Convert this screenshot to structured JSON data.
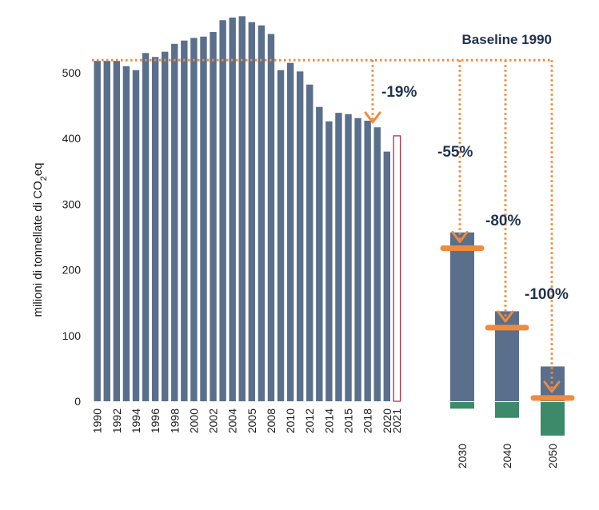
{
  "chart_data": {
    "type": "bar",
    "ylabel": "milioni di tonnellate di CO",
    "ylabel_sub": "2",
    "ylabel_suffix": "eq",
    "ylim": [
      0,
      550
    ],
    "yticks": [
      "0",
      "100",
      "200",
      "300",
      "400",
      "500"
    ],
    "yticks_values": [
      0,
      100,
      200,
      300,
      400,
      500
    ],
    "historical": {
      "x": [
        1990,
        1991,
        1992,
        1993,
        1994,
        1995,
        1996,
        1997,
        1998,
        1999,
        2000,
        2001,
        2002,
        2003,
        2004,
        2005,
        2006,
        2007,
        2008,
        2009,
        2010,
        2011,
        2012,
        2013,
        2014,
        2015,
        2016,
        2017,
        2018,
        2019,
        2020
      ],
      "values": [
        518,
        518,
        518,
        510,
        504,
        530,
        524,
        532,
        544,
        549,
        553,
        555,
        562,
        580,
        584,
        586,
        577,
        572,
        559,
        504,
        515,
        502,
        482,
        448,
        426,
        439,
        437,
        431,
        427,
        417,
        380
      ],
      "color": "#5a6f8c"
    },
    "x_tick_labels": [
      "1990",
      "1992",
      "1994",
      "1996",
      "1998",
      "2000",
      "2002",
      "2004",
      "2005",
      "2008",
      "2010",
      "2012",
      "2014",
      "2015",
      "2018",
      "2020",
      "2021"
    ],
    "outline_bar": {
      "x": 2021,
      "value": 404,
      "color": "#b0304a"
    },
    "projections": [
      {
        "year": "2030",
        "total": 257,
        "target": 233,
        "negative": -10,
        "target_label": "-55%"
      },
      {
        "year": "2040",
        "total": 137,
        "target": 112,
        "negative": -24,
        "target_label": "-80%"
      },
      {
        "year": "2050",
        "total": 53,
        "target": 5,
        "negative": -51,
        "target_label": "-100%"
      }
    ],
    "reference_line": {
      "label": "Baseline 1990",
      "value": 518
    },
    "annotation_2019": "-19%",
    "colors": {
      "bar": "#5a6f8c",
      "negative": "#3c8a6a",
      "target": "#f08a3c",
      "arrow": "#f08a3c",
      "outline": "#b0304a"
    }
  }
}
